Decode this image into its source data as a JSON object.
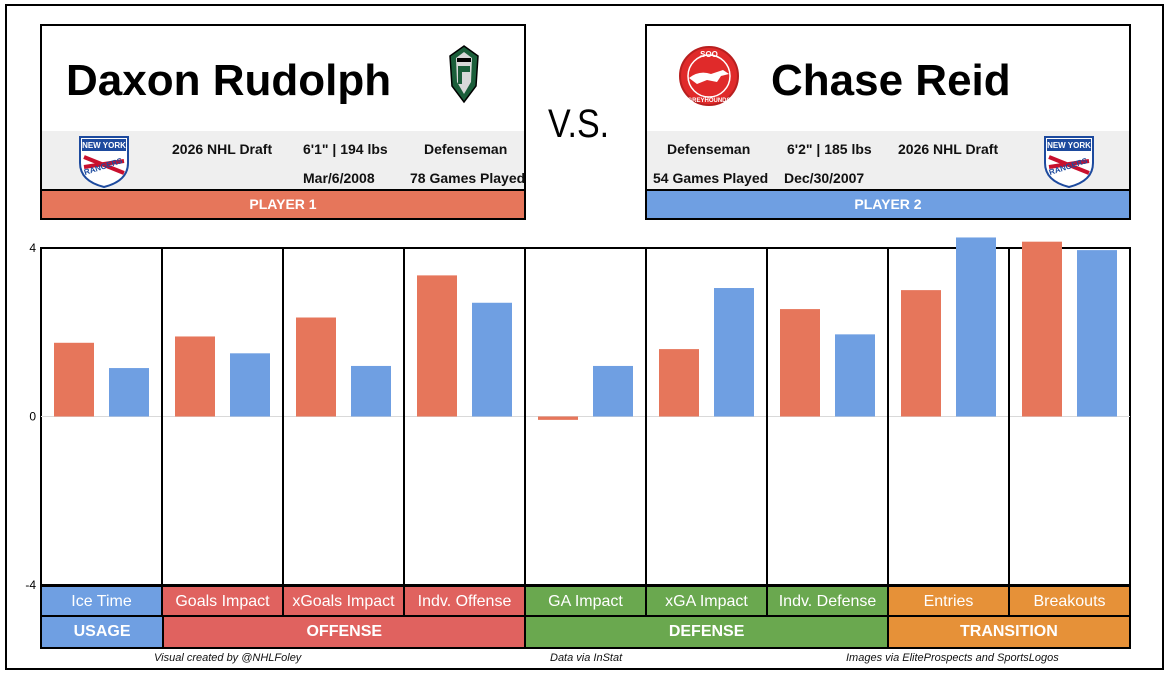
{
  "players": [
    {
      "name": "Daxon Rudolph",
      "draft": "2026 NHL Draft",
      "size": "6'1\" | 194 lbs",
      "position": "Defenseman",
      "dob": "Mar/6/2008",
      "games": "78 Games Played",
      "label": "PLAYER 1",
      "color": "#e6765b",
      "team_logo": "pats-shield-icon",
      "nhl_logo": "rangers-logo"
    },
    {
      "name": "Chase Reid",
      "draft": "2026 NHL Draft",
      "size": "6'2\" | 185 lbs",
      "position": "Defenseman",
      "dob": "Dec/30/2007",
      "games": "54 Games Played",
      "label": "PLAYER 2",
      "color": "#6f9fe2",
      "team_logo": "soo-greyhounds-icon",
      "nhl_logo": "rangers-logo"
    }
  ],
  "vs_text": "V.S.",
  "rangers_logo_text": {
    "top": "NEW YORK",
    "bottom": "RANGERS"
  },
  "soo_logo_text": {
    "top": "SOO",
    "bottom": "GREYHOUNDS"
  },
  "chart_data": {
    "type": "bar",
    "categories": [
      "Ice Time",
      "Goals Impact",
      "xGoals Impact",
      "Indv. Offense",
      "GA Impact",
      "xGA Impact",
      "Indv. Defense",
      "Entries",
      "Breakouts"
    ],
    "series": [
      {
        "name": "PLAYER 1",
        "values": [
          1.75,
          1.9,
          2.35,
          3.35,
          -0.08,
          1.6,
          2.55,
          3.0,
          4.15
        ]
      },
      {
        "name": "PLAYER 2",
        "values": [
          1.15,
          1.5,
          1.2,
          2.7,
          1.2,
          3.05,
          1.95,
          4.25,
          3.95
        ]
      }
    ],
    "ylim": [
      -4,
      4
    ],
    "yticks": [
      "4",
      "0",
      "-4"
    ],
    "groups": [
      {
        "label": "USAGE",
        "span": 1,
        "color": "#6f9fe2"
      },
      {
        "label": "OFFENSE",
        "span": 3,
        "color": "#e0625f"
      },
      {
        "label": "DEFENSE",
        "span": 3,
        "color": "#6aa84f"
      },
      {
        "label": "TRANSITION",
        "span": 2,
        "color": "#e69138"
      }
    ],
    "category_colors": [
      "#6f9fe2",
      "#e0625f",
      "#e0625f",
      "#e0625f",
      "#6aa84f",
      "#6aa84f",
      "#6aa84f",
      "#e69138",
      "#e69138"
    ]
  },
  "footer": {
    "credit": "Visual created by @NHLFoley",
    "data_source": "Data via InStat",
    "images": "Images via EliteProspects and SportsLogos"
  }
}
